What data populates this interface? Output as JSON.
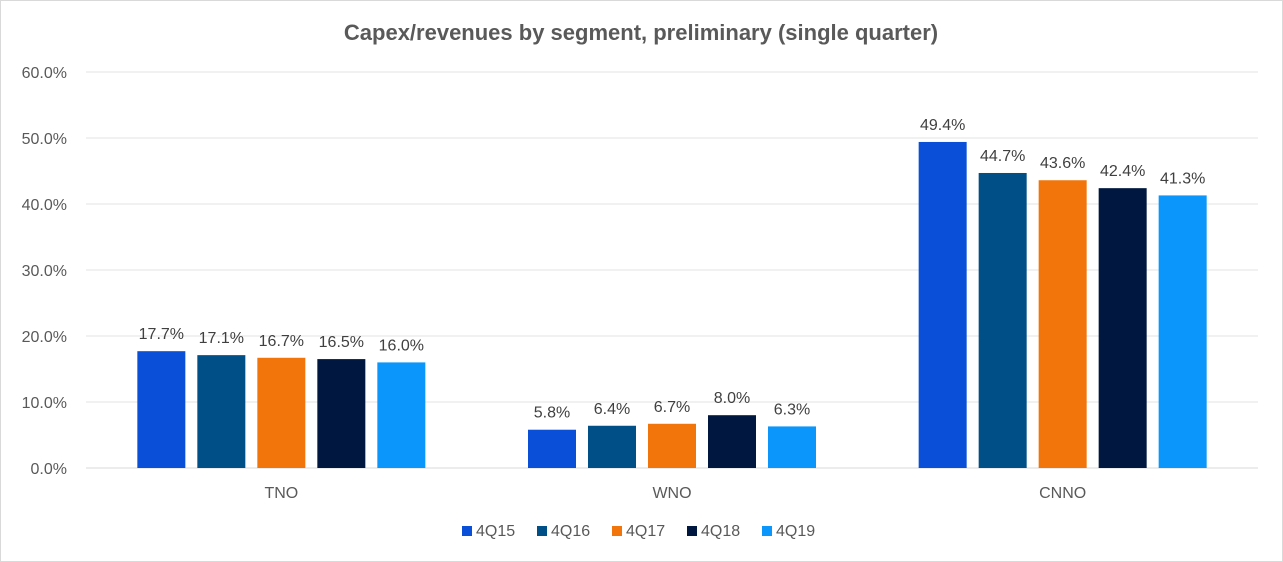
{
  "chart_data": {
    "type": "bar",
    "title": "Capex/revenues by segment, preliminary (single quarter)",
    "categories": [
      "TNO",
      "WNO",
      "CNNO"
    ],
    "series": [
      {
        "name": "4Q15",
        "color": "#0a4fd8",
        "values": [
          17.7,
          5.8,
          49.4
        ],
        "labels": [
          "17.7%",
          "5.8%",
          "49.4%"
        ]
      },
      {
        "name": "4Q16",
        "color": "#004f86",
        "values": [
          17.1,
          6.4,
          44.7
        ],
        "labels": [
          "17.1%",
          "6.4%",
          "44.7%"
        ]
      },
      {
        "name": "4Q17",
        "color": "#f2750b",
        "values": [
          16.7,
          6.7,
          43.6
        ],
        "labels": [
          "16.7%",
          "6.7%",
          "43.6%"
        ]
      },
      {
        "name": "4Q18",
        "color": "#00173f",
        "values": [
          16.5,
          8.0,
          42.4
        ],
        "labels": [
          "16.5%",
          "8.0%",
          "42.4%"
        ]
      },
      {
        "name": "4Q19",
        "color": "#0a96fa",
        "values": [
          16.0,
          6.3,
          41.3
        ],
        "labels": [
          "16.0%",
          "6.3%",
          "41.3%"
        ]
      }
    ],
    "yticks": [
      "0.0%",
      "10.0%",
      "20.0%",
      "30.0%",
      "40.0%",
      "50.0%",
      "60.0%"
    ],
    "ylim": [
      0,
      60
    ],
    "grid": true,
    "legend_position": "bottom"
  }
}
